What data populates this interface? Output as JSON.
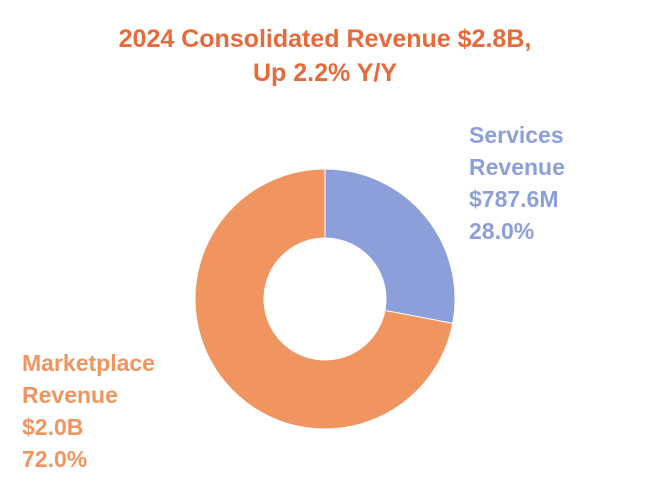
{
  "colors": {
    "title": "#E8693A",
    "services": "#8C9FDB",
    "marketplace": "#F09460",
    "background": "#FFFFFF"
  },
  "chart_data": {
    "type": "pie",
    "variant": "donut",
    "title_lines": [
      "2024 Consolidated Revenue $2.8B,",
      "Up 2.2% Y/Y"
    ],
    "total_display": "$2.8B",
    "growth_display": "2.2% Y/Y",
    "slices": [
      {
        "name": "Services Revenue",
        "name_lines": [
          "Services",
          "Revenue"
        ],
        "value_display": "$787.6M",
        "value_millions": 787.6,
        "percent_display": "28.0%",
        "percent": 28.0,
        "color": "#8C9FDB"
      },
      {
        "name": "Marketplace Revenue",
        "name_lines": [
          "Marketplace",
          "Revenue"
        ],
        "value_display": "$2.0B",
        "value_millions": 2000,
        "percent_display": "72.0%",
        "percent": 72.0,
        "color": "#F09460"
      }
    ],
    "start_angle": "12 o'clock",
    "direction": "clockwise"
  }
}
